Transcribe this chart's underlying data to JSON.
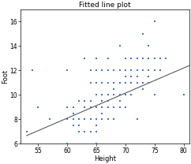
{
  "title": "Fitted line plot",
  "xlabel": "Height",
  "ylabel": "Foot",
  "xlim": [
    52,
    81
  ],
  "ylim": [
    6,
    17
  ],
  "xticks": [
    55,
    60,
    65,
    70,
    75,
    80
  ],
  "yticks": [
    6,
    8,
    10,
    12,
    14,
    16
  ],
  "scatter_color": "#4472C4",
  "line_color": "#444444",
  "points": [
    [
      53,
      7
    ],
    [
      54,
      12
    ],
    [
      55,
      9
    ],
    [
      57,
      8
    ],
    [
      60,
      6
    ],
    [
      60,
      6
    ],
    [
      60,
      8
    ],
    [
      60,
      9
    ],
    [
      60,
      12
    ],
    [
      61,
      7.5
    ],
    [
      61,
      8
    ],
    [
      61,
      8.5
    ],
    [
      61,
      9
    ],
    [
      62,
      7
    ],
    [
      62,
      7.5
    ],
    [
      62,
      8
    ],
    [
      62,
      9.5
    ],
    [
      63,
      7
    ],
    [
      63,
      7
    ],
    [
      63,
      8
    ],
    [
      63,
      8
    ],
    [
      63,
      9
    ],
    [
      63,
      9.5
    ],
    [
      63,
      13
    ],
    [
      63,
      13
    ],
    [
      64,
      7
    ],
    [
      64,
      7
    ],
    [
      64,
      8
    ],
    [
      64,
      8
    ],
    [
      64,
      9
    ],
    [
      64,
      9.5
    ],
    [
      64,
      11
    ],
    [
      64,
      12
    ],
    [
      65,
      6
    ],
    [
      65,
      6
    ],
    [
      65,
      7
    ],
    [
      65,
      7.5
    ],
    [
      65,
      8
    ],
    [
      65,
      9
    ],
    [
      65,
      10
    ],
    [
      65,
      11
    ],
    [
      65,
      12
    ],
    [
      65,
      13
    ],
    [
      66,
      8
    ],
    [
      66,
      8.5
    ],
    [
      66,
      9
    ],
    [
      66,
      9.5
    ],
    [
      66,
      10
    ],
    [
      66,
      11
    ],
    [
      66,
      12
    ],
    [
      67,
      8
    ],
    [
      67,
      9
    ],
    [
      67,
      9.5
    ],
    [
      67,
      10
    ],
    [
      67,
      11
    ],
    [
      67,
      12
    ],
    [
      67,
      13
    ],
    [
      68,
      8
    ],
    [
      68,
      9
    ],
    [
      68,
      10
    ],
    [
      68,
      10.5
    ],
    [
      68,
      11
    ],
    [
      68,
      12
    ],
    [
      69,
      9
    ],
    [
      69,
      9.5
    ],
    [
      69,
      10
    ],
    [
      69,
      11
    ],
    [
      69,
      12
    ],
    [
      69,
      14
    ],
    [
      70,
      9
    ],
    [
      70,
      10
    ],
    [
      70,
      11
    ],
    [
      70,
      11
    ],
    [
      70,
      11.5
    ],
    [
      70,
      12
    ],
    [
      70,
      13
    ],
    [
      71,
      10
    ],
    [
      71,
      11
    ],
    [
      71,
      11.5
    ],
    [
      71,
      12
    ],
    [
      71,
      13
    ],
    [
      72,
      8
    ],
    [
      72,
      11
    ],
    [
      72,
      11.5
    ],
    [
      72,
      12
    ],
    [
      72,
      13
    ],
    [
      73,
      10.5
    ],
    [
      73,
      11
    ],
    [
      73,
      12
    ],
    [
      73,
      13
    ],
    [
      73,
      13
    ],
    [
      73,
      15
    ],
    [
      74,
      11
    ],
    [
      74,
      11.5
    ],
    [
      74,
      12
    ],
    [
      74,
      13
    ],
    [
      74,
      14
    ],
    [
      75,
      10
    ],
    [
      75,
      12
    ],
    [
      75,
      13
    ],
    [
      75,
      13
    ],
    [
      75,
      16
    ],
    [
      76,
      12
    ],
    [
      76,
      13
    ],
    [
      76,
      13
    ],
    [
      77,
      13
    ],
    [
      80,
      10
    ]
  ],
  "line_x0": 53,
  "line_x1": 81,
  "line_slope": 0.205,
  "line_intercept": -4.2,
  "marker_size": 3.5,
  "marker_style": "s",
  "title_fontsize": 6.5,
  "label_fontsize": 6,
  "tick_fontsize": 5.5
}
